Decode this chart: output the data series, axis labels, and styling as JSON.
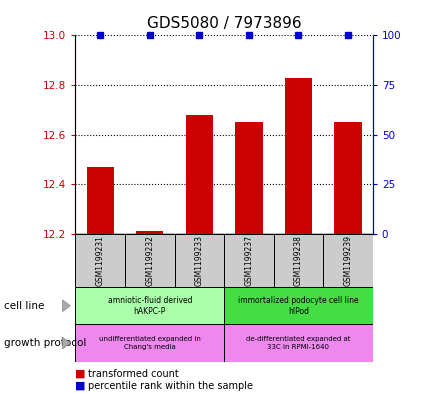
{
  "title": "GDS5080 / 7973896",
  "samples": [
    "GSM1199231",
    "GSM1199232",
    "GSM1199233",
    "GSM1199237",
    "GSM1199238",
    "GSM1199239"
  ],
  "bar_values": [
    12.47,
    12.21,
    12.68,
    12.65,
    12.83,
    12.65
  ],
  "percentile_values": [
    100,
    100,
    100,
    100,
    100,
    100
  ],
  "ylim_left": [
    12.2,
    13.0
  ],
  "ylim_right": [
    0,
    100
  ],
  "yticks_left": [
    12.2,
    12.4,
    12.6,
    12.8,
    13.0
  ],
  "yticks_right": [
    0,
    25,
    50,
    75,
    100
  ],
  "bar_color": "#cc0000",
  "dot_color": "#0000cc",
  "cell_line_groups": [
    {
      "label": "amniotic-fluid derived\nhAKPC-P",
      "start": 0,
      "end": 3,
      "color": "#aaffaa"
    },
    {
      "label": "immortalized podocyte cell line\nhIPod",
      "start": 3,
      "end": 6,
      "color": "#44dd44"
    }
  ],
  "growth_protocol_groups": [
    {
      "label": "undifferentiated expanded in\nChang's media",
      "start": 0,
      "end": 3,
      "color": "#ee88ee"
    },
    {
      "label": "de-differentiated expanded at\n33C in RPMI-1640",
      "start": 3,
      "end": 6,
      "color": "#ee88ee"
    }
  ],
  "sample_bg_color": "#cccccc",
  "left_axis_color": "#cc0000",
  "right_axis_color": "#0000cc",
  "title_fontsize": 11
}
